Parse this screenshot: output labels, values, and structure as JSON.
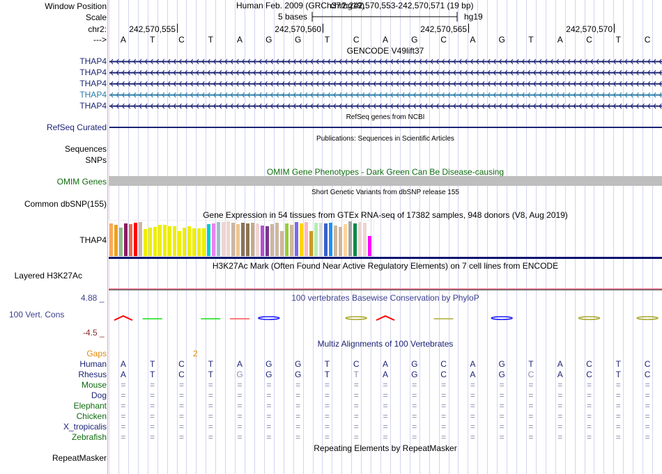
{
  "header": {
    "window_position_label": "Window Position",
    "scale_label": "Scale",
    "chrom_label": "chr2:",
    "strand_label": "--->",
    "assembly_title": "Human Feb. 2009 (GRCh37/hg19)",
    "position": "chr2:242,570,553-242,570,571 (19 bp)",
    "scale_text": "5 bases",
    "db": "hg19",
    "ticks": [
      "242,570,555",
      "242,570,560",
      "242,570,565",
      "242,570,570"
    ]
  },
  "sequence": [
    "A",
    "T",
    "C",
    "T",
    "A",
    "G",
    "G",
    "T",
    "C",
    "A",
    "G",
    "C",
    "A",
    "G",
    "T",
    "A",
    "C",
    "T",
    "C"
  ],
  "tracks": {
    "gencode": {
      "title": "GENCODE V49lift37",
      "genes": [
        {
          "name": "THAP4",
          "color": "#1c2373"
        },
        {
          "name": "THAP4",
          "color": "#1c2373"
        },
        {
          "name": "THAP4",
          "color": "#1c2373"
        },
        {
          "name": "THAP4",
          "color": "#2a7ca8"
        },
        {
          "name": "THAP4",
          "color": "#1c2373"
        }
      ]
    },
    "refseq": {
      "title": "RefSeq genes from NCBI",
      "label": "RefSeq Curated"
    },
    "publications": {
      "title": "Publications: Sequences in Scientific Articles",
      "labels": [
        "Sequences",
        "SNPs"
      ]
    },
    "omim": {
      "title": "OMIM Gene Phenotypes - Dark Green Can Be Disease-causing",
      "label": "OMIM Genes",
      "bar_color": "#bebebe"
    },
    "dbsnp": {
      "title": "Short Genetic Variants from dbSNP release 155",
      "label": "Common dbSNP(155)"
    },
    "gtex": {
      "title": "Gene Expression in 54 tissues from GTEx RNA-seq of 17382 samples, 948 donors (V8, Aug 2019)",
      "label": "THAP4"
    },
    "h3k27ac": {
      "title": "H3K27Ac Mark (Often Found Near Active Regulatory Elements) on 7 cell lines from ENCODE",
      "label": "Layered H3K27Ac"
    },
    "phylop": {
      "title": "100 vertebrates Basewise Conservation by PhyloP",
      "label": "100 Vert. Cons",
      "max": "4.88 _",
      "min": "-4.5 _"
    },
    "multiz": {
      "title": "Multiz Alignments of 100 Vertebrates",
      "gaps_label": "Gaps",
      "gap_count": "2",
      "species": [
        {
          "name": "Human",
          "color": "#1c2373"
        },
        {
          "name": "Rhesus",
          "color": "#1c2373"
        },
        {
          "name": "Mouse",
          "color": "#0e6b0e"
        },
        {
          "name": "Dog",
          "color": "#1c2373"
        },
        {
          "name": "Elephant",
          "color": "#0e6b0e"
        },
        {
          "name": "Chicken",
          "color": "#0e6b0e"
        },
        {
          "name": "X_tropicalis",
          "color": "#1c2373"
        },
        {
          "name": "Zebrafish",
          "color": "#0e6b0e"
        }
      ],
      "rhesus_seq": [
        "A",
        "T",
        "C",
        "T",
        "G",
        "G",
        "G",
        "T",
        "T",
        "A",
        "G",
        "C",
        "A",
        "G",
        "C",
        "A",
        "C",
        "T",
        "C"
      ],
      "rhesus_mismatch": [
        4,
        8,
        14
      ],
      "match_symbol": "="
    },
    "repeatmasker": {
      "title": "Repeating Elements by RepeatMasker",
      "label": "RepeatMasker"
    }
  },
  "chart_data": {
    "type": "bar",
    "title": "Gene Expression in 54 tissues from GTEx RNA-seq of 17382 samples, 948 donors (V8, Aug 2019)",
    "xlabel": "",
    "ylabel": "",
    "ylim": [
      0,
      1
    ],
    "values": [
      0.94,
      0.9,
      0.82,
      0.94,
      0.92,
      0.96,
      0.98,
      0.78,
      0.82,
      0.84,
      0.9,
      0.9,
      0.86,
      0.86,
      0.72,
      0.82,
      0.86,
      0.8,
      0.8,
      0.8,
      0.92,
      0.94,
      0.98,
      0.98,
      1.0,
      0.96,
      0.92,
      0.96,
      0.94,
      0.96,
      0.94,
      0.88,
      0.86,
      0.92,
      0.96,
      0.72,
      0.94,
      0.9,
      0.98,
      0.94,
      0.98,
      0.72,
      0.96,
      0.96,
      0.94,
      0.96,
      0.88,
      0.84,
      0.92,
      1.0,
      0.94,
      0.98,
      0.96,
      0.58
    ],
    "colors": [
      "#f9a85c",
      "#efa11b",
      "#8fbc8f",
      "#8b1c62",
      "#ee6a50",
      "#ff0000",
      "#cdb79e",
      "#eeee00",
      "#eeee00",
      "#eeee00",
      "#eeee00",
      "#eeee00",
      "#eeee00",
      "#eeee00",
      "#eeee00",
      "#eeee00",
      "#eeee00",
      "#eeee00",
      "#eeee00",
      "#eeee00",
      "#00cdcd",
      "#ee82ee",
      "#9ac0cd",
      "#eed5d2",
      "#eed5d2",
      "#cdb79e",
      "#eec591",
      "#8b7355",
      "#8b7355",
      "#cdaa7d",
      "#eed5d2",
      "#b452cd",
      "#7a378b",
      "#cdb79e",
      "#cdb79e",
      "#cdb79e",
      "#9acd32",
      "#cdb79e",
      "#7b68ee",
      "#ffd700",
      "#ffb6c1",
      "#cd9b1d",
      "#b4eeb4",
      "#d9d9d9",
      "#3a5fcd",
      "#1e90ff",
      "#cdb79e",
      "#cdb79e",
      "#ffd39b",
      "#a6a6a6",
      "#008b45",
      "#eed5d2",
      "#eed5d2",
      "#ff00ff"
    ]
  },
  "phylop_marks": [
    {
      "base": 0,
      "color": "#ff0000",
      "shape": "A"
    },
    {
      "base": 1,
      "color": "#00dd00",
      "shape": "dash"
    },
    {
      "base": 3,
      "color": "#00dd00",
      "shape": "dash"
    },
    {
      "base": 4,
      "color": "#ff4444",
      "shape": "dash"
    },
    {
      "base": 5,
      "color": "#1a1aff",
      "shape": "ring"
    },
    {
      "base": 8,
      "color": "#a8a828",
      "shape": "ring"
    },
    {
      "base": 9,
      "color": "#ff0000",
      "shape": "A"
    },
    {
      "base": 11,
      "color": "#a8a828",
      "shape": "dash"
    },
    {
      "base": 13,
      "color": "#1a1aff",
      "shape": "ring"
    },
    {
      "base": 16,
      "color": "#a8a828",
      "shape": "ring"
    },
    {
      "base": 18,
      "color": "#a8a828",
      "shape": "ring"
    }
  ]
}
